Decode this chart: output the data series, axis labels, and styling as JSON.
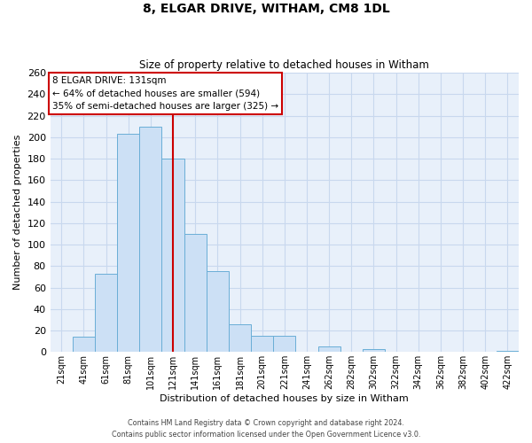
{
  "title1": "8, ELGAR DRIVE, WITHAM, CM8 1DL",
  "title2": "Size of property relative to detached houses in Witham",
  "xlabel": "Distribution of detached houses by size in Witham",
  "ylabel": "Number of detached properties",
  "categories": [
    "21sqm",
    "41sqm",
    "61sqm",
    "81sqm",
    "101sqm",
    "121sqm",
    "141sqm",
    "161sqm",
    "181sqm",
    "201sqm",
    "221sqm",
    "241sqm",
    "262sqm",
    "282sqm",
    "302sqm",
    "322sqm",
    "342sqm",
    "362sqm",
    "382sqm",
    "402sqm",
    "422sqm"
  ],
  "values": [
    0,
    14,
    73,
    203,
    210,
    180,
    110,
    75,
    26,
    15,
    15,
    0,
    5,
    0,
    3,
    0,
    0,
    0,
    0,
    0,
    1
  ],
  "bar_color": "#cce0f5",
  "bar_edge_color": "#6aaed6",
  "background_color": "#ffffff",
  "plot_bg_color": "#e8f0fa",
  "grid_color": "#c8d8ee",
  "annotation_line_color": "#cc0000",
  "annotation_box_text": "8 ELGAR DRIVE: 131sqm\n← 64% of detached houses are smaller (594)\n35% of semi-detached houses are larger (325) →",
  "ylim": [
    0,
    260
  ],
  "yticks": [
    0,
    20,
    40,
    60,
    80,
    100,
    120,
    140,
    160,
    180,
    200,
    220,
    240,
    260
  ],
  "footer1": "Contains HM Land Registry data © Crown copyright and database right 2024.",
  "footer2": "Contains public sector information licensed under the Open Government Licence v3.0."
}
